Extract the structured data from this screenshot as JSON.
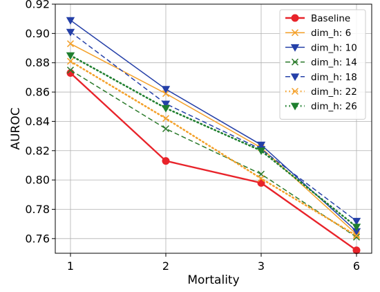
{
  "chart_data": {
    "type": "line",
    "title": "",
    "xlabel": "Mortality",
    "ylabel": "AUROC",
    "categories": [
      "1",
      "2",
      "3",
      "6"
    ],
    "ylim": [
      0.75,
      0.92
    ],
    "yticks": [
      "0.76",
      "0.78",
      "0.80",
      "0.82",
      "0.84",
      "0.86",
      "0.88",
      "0.90",
      "0.92"
    ],
    "grid": true,
    "legend_position": "top-right",
    "series": [
      {
        "name": "Baseline",
        "values": [
          0.873,
          0.813,
          0.798,
          0.752
        ],
        "color": "#e8232a",
        "line": "solid",
        "marker": "circle",
        "width": 2.4
      },
      {
        "name": "dim_h: 6",
        "values": [
          0.893,
          0.859,
          0.822,
          0.763
        ],
        "color": "#f4a12b",
        "line": "solid",
        "marker": "x",
        "width": 1.5
      },
      {
        "name": "dim_h: 10",
        "values": [
          0.909,
          0.862,
          0.824,
          0.765
        ],
        "color": "#2540a8",
        "line": "solid",
        "marker": "triangle-down",
        "width": 1.5
      },
      {
        "name": "dim_h: 14",
        "values": [
          0.875,
          0.835,
          0.804,
          0.761
        ],
        "color": "#2b7a2b",
        "line": "dashed",
        "marker": "x",
        "width": 1.5
      },
      {
        "name": "dim_h: 18",
        "values": [
          0.901,
          0.852,
          0.821,
          0.772
        ],
        "color": "#2540a8",
        "line": "dashed",
        "marker": "triangle-down",
        "width": 1.5
      },
      {
        "name": "dim_h: 22",
        "values": [
          0.881,
          0.842,
          0.801,
          0.762
        ],
        "color": "#f4a12b",
        "line": "dotted",
        "marker": "x",
        "width": 2.6
      },
      {
        "name": "dim_h: 26",
        "values": [
          0.885,
          0.849,
          0.82,
          0.768
        ],
        "color": "#1f7f2f",
        "line": "dotted",
        "marker": "triangle-down",
        "width": 2.6
      }
    ]
  }
}
